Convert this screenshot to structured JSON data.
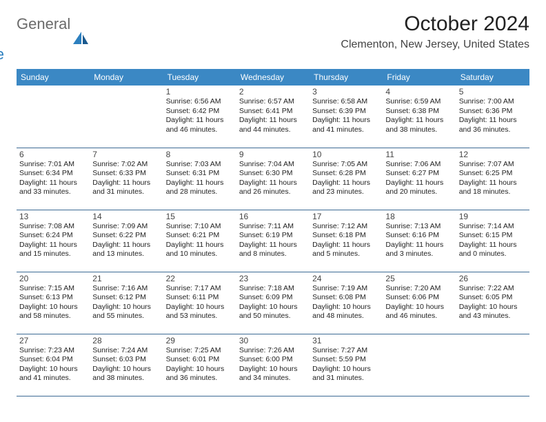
{
  "logo": {
    "text1": "General",
    "text2": "Blue"
  },
  "title": "October 2024",
  "location": "Clementon, New Jersey, United States",
  "header_bg": "#3b88c4",
  "border_color": "#3b6a94",
  "weekdays": [
    "Sunday",
    "Monday",
    "Tuesday",
    "Wednesday",
    "Thursday",
    "Friday",
    "Saturday"
  ],
  "weeks": [
    [
      null,
      null,
      {
        "n": "1",
        "sr": "6:56 AM",
        "ss": "6:42 PM",
        "dh": "11",
        "dm": "46"
      },
      {
        "n": "2",
        "sr": "6:57 AM",
        "ss": "6:41 PM",
        "dh": "11",
        "dm": "44"
      },
      {
        "n": "3",
        "sr": "6:58 AM",
        "ss": "6:39 PM",
        "dh": "11",
        "dm": "41"
      },
      {
        "n": "4",
        "sr": "6:59 AM",
        "ss": "6:38 PM",
        "dh": "11",
        "dm": "38"
      },
      {
        "n": "5",
        "sr": "7:00 AM",
        "ss": "6:36 PM",
        "dh": "11",
        "dm": "36"
      }
    ],
    [
      {
        "n": "6",
        "sr": "7:01 AM",
        "ss": "6:34 PM",
        "dh": "11",
        "dm": "33"
      },
      {
        "n": "7",
        "sr": "7:02 AM",
        "ss": "6:33 PM",
        "dh": "11",
        "dm": "31"
      },
      {
        "n": "8",
        "sr": "7:03 AM",
        "ss": "6:31 PM",
        "dh": "11",
        "dm": "28"
      },
      {
        "n": "9",
        "sr": "7:04 AM",
        "ss": "6:30 PM",
        "dh": "11",
        "dm": "26"
      },
      {
        "n": "10",
        "sr": "7:05 AM",
        "ss": "6:28 PM",
        "dh": "11",
        "dm": "23"
      },
      {
        "n": "11",
        "sr": "7:06 AM",
        "ss": "6:27 PM",
        "dh": "11",
        "dm": "20"
      },
      {
        "n": "12",
        "sr": "7:07 AM",
        "ss": "6:25 PM",
        "dh": "11",
        "dm": "18"
      }
    ],
    [
      {
        "n": "13",
        "sr": "7:08 AM",
        "ss": "6:24 PM",
        "dh": "11",
        "dm": "15"
      },
      {
        "n": "14",
        "sr": "7:09 AM",
        "ss": "6:22 PM",
        "dh": "11",
        "dm": "13"
      },
      {
        "n": "15",
        "sr": "7:10 AM",
        "ss": "6:21 PM",
        "dh": "11",
        "dm": "10"
      },
      {
        "n": "16",
        "sr": "7:11 AM",
        "ss": "6:19 PM",
        "dh": "11",
        "dm": "8"
      },
      {
        "n": "17",
        "sr": "7:12 AM",
        "ss": "6:18 PM",
        "dh": "11",
        "dm": "5"
      },
      {
        "n": "18",
        "sr": "7:13 AM",
        "ss": "6:16 PM",
        "dh": "11",
        "dm": "3"
      },
      {
        "n": "19",
        "sr": "7:14 AM",
        "ss": "6:15 PM",
        "dh": "11",
        "dm": "0"
      }
    ],
    [
      {
        "n": "20",
        "sr": "7:15 AM",
        "ss": "6:13 PM",
        "dh": "10",
        "dm": "58"
      },
      {
        "n": "21",
        "sr": "7:16 AM",
        "ss": "6:12 PM",
        "dh": "10",
        "dm": "55"
      },
      {
        "n": "22",
        "sr": "7:17 AM",
        "ss": "6:11 PM",
        "dh": "10",
        "dm": "53"
      },
      {
        "n": "23",
        "sr": "7:18 AM",
        "ss": "6:09 PM",
        "dh": "10",
        "dm": "50"
      },
      {
        "n": "24",
        "sr": "7:19 AM",
        "ss": "6:08 PM",
        "dh": "10",
        "dm": "48"
      },
      {
        "n": "25",
        "sr": "7:20 AM",
        "ss": "6:06 PM",
        "dh": "10",
        "dm": "46"
      },
      {
        "n": "26",
        "sr": "7:22 AM",
        "ss": "6:05 PM",
        "dh": "10",
        "dm": "43"
      }
    ],
    [
      {
        "n": "27",
        "sr": "7:23 AM",
        "ss": "6:04 PM",
        "dh": "10",
        "dm": "41"
      },
      {
        "n": "28",
        "sr": "7:24 AM",
        "ss": "6:03 PM",
        "dh": "10",
        "dm": "38"
      },
      {
        "n": "29",
        "sr": "7:25 AM",
        "ss": "6:01 PM",
        "dh": "10",
        "dm": "36"
      },
      {
        "n": "30",
        "sr": "7:26 AM",
        "ss": "6:00 PM",
        "dh": "10",
        "dm": "34"
      },
      {
        "n": "31",
        "sr": "7:27 AM",
        "ss": "5:59 PM",
        "dh": "10",
        "dm": "31"
      },
      null,
      null
    ]
  ],
  "labels": {
    "sunrise": "Sunrise:",
    "sunset": "Sunset:",
    "daylight": "Daylight:",
    "hours": "hours",
    "and": "and",
    "minutes": "minutes."
  }
}
